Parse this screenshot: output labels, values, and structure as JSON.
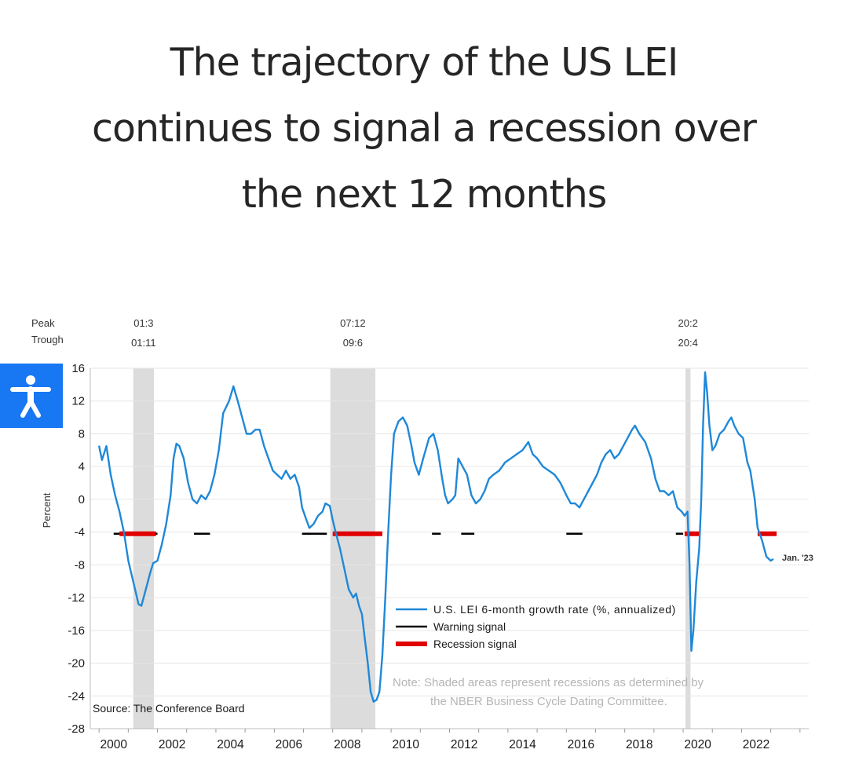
{
  "headline": [
    "The trajectory of the US LEI",
    "continues to signal a recession over",
    "the next 12 months"
  ],
  "colors": {
    "series": "#1f88d8",
    "warning": "#000000",
    "recession": "#e00000",
    "shade": "#dcdcdc",
    "accessibility": "#1877f2"
  },
  "accessibility_button": {
    "icon": "accessibility-person-icon"
  },
  "chart_data": {
    "type": "line",
    "ylabel": "Percent",
    "ylim": [
      -28,
      16
    ],
    "yticks": [
      "16",
      "12",
      "8",
      "4",
      "0",
      "-4",
      "-8",
      "-12",
      "-16",
      "-20",
      "-24",
      "-28"
    ],
    "xlim": [
      1999.7,
      2024.3
    ],
    "xticks": [
      "2000",
      "2002",
      "2004",
      "2006",
      "2008",
      "2010",
      "2012",
      "2014",
      "2016",
      "2018",
      "2020",
      "2022"
    ],
    "peak_trough_labels": {
      "peak": "Peak",
      "trough": "Trough"
    },
    "recessions": [
      {
        "peak": "01:3",
        "trough": "01:11",
        "start": 2001.17,
        "end": 2001.88
      },
      {
        "peak": "07:12",
        "trough": "09:6",
        "start": 2007.92,
        "end": 2009.46
      },
      {
        "peak": "20:2",
        "trough": "20:4",
        "start": 2020.08,
        "end": 2020.25
      }
    ],
    "series": [
      {
        "name": "U.S. LEI 6-month growth rate (%, annualized)",
        "points": [
          [
            2000.0,
            6.5
          ],
          [
            2000.1,
            4.8
          ],
          [
            2000.25,
            6.5
          ],
          [
            2000.4,
            3.0
          ],
          [
            2000.55,
            0.5
          ],
          [
            2000.7,
            -1.5
          ],
          [
            2000.85,
            -4.0
          ],
          [
            2001.0,
            -7.5
          ],
          [
            2001.2,
            -10.5
          ],
          [
            2001.35,
            -12.8
          ],
          [
            2001.45,
            -13.0
          ],
          [
            2001.6,
            -11.0
          ],
          [
            2001.75,
            -9.0
          ],
          [
            2001.85,
            -7.8
          ],
          [
            2002.0,
            -7.5
          ],
          [
            2002.15,
            -5.5
          ],
          [
            2002.3,
            -3.0
          ],
          [
            2002.45,
            0.5
          ],
          [
            2002.55,
            5.0
          ],
          [
            2002.65,
            6.8
          ],
          [
            2002.75,
            6.5
          ],
          [
            2002.9,
            5.0
          ],
          [
            2003.05,
            2.0
          ],
          [
            2003.2,
            0.0
          ],
          [
            2003.35,
            -0.5
          ],
          [
            2003.5,
            0.5
          ],
          [
            2003.65,
            0.0
          ],
          [
            2003.8,
            1.0
          ],
          [
            2003.95,
            3.0
          ],
          [
            2004.1,
            6.0
          ],
          [
            2004.25,
            10.5
          ],
          [
            2004.45,
            12.0
          ],
          [
            2004.6,
            13.8
          ],
          [
            2004.75,
            12.0
          ],
          [
            2004.9,
            10.0
          ],
          [
            2005.05,
            8.0
          ],
          [
            2005.2,
            8.0
          ],
          [
            2005.35,
            8.5
          ],
          [
            2005.5,
            8.5
          ],
          [
            2005.65,
            6.5
          ],
          [
            2005.8,
            5.0
          ],
          [
            2005.95,
            3.5
          ],
          [
            2006.1,
            3.0
          ],
          [
            2006.25,
            2.5
          ],
          [
            2006.4,
            3.5
          ],
          [
            2006.55,
            2.5
          ],
          [
            2006.7,
            3.0
          ],
          [
            2006.85,
            1.5
          ],
          [
            2006.95,
            -1.0
          ],
          [
            2007.1,
            -2.5
          ],
          [
            2007.2,
            -3.5
          ],
          [
            2007.35,
            -3.0
          ],
          [
            2007.5,
            -2.0
          ],
          [
            2007.65,
            -1.5
          ],
          [
            2007.75,
            -0.5
          ],
          [
            2007.9,
            -0.8
          ],
          [
            2008.0,
            -2.5
          ],
          [
            2008.1,
            -4.0
          ],
          [
            2008.25,
            -6.0
          ],
          [
            2008.4,
            -8.5
          ],
          [
            2008.55,
            -11.0
          ],
          [
            2008.7,
            -12.0
          ],
          [
            2008.8,
            -11.5
          ],
          [
            2008.9,
            -13.0
          ],
          [
            2009.0,
            -14.0
          ],
          [
            2009.1,
            -17.0
          ],
          [
            2009.2,
            -20.0
          ],
          [
            2009.3,
            -23.5
          ],
          [
            2009.4,
            -24.7
          ],
          [
            2009.5,
            -24.5
          ],
          [
            2009.6,
            -23.5
          ],
          [
            2009.7,
            -19.0
          ],
          [
            2009.8,
            -12.0
          ],
          [
            2009.9,
            -4.0
          ],
          [
            2010.0,
            3.0
          ],
          [
            2010.1,
            8.0
          ],
          [
            2010.25,
            9.5
          ],
          [
            2010.4,
            10.0
          ],
          [
            2010.55,
            9.0
          ],
          [
            2010.7,
            6.5
          ],
          [
            2010.8,
            4.5
          ],
          [
            2010.95,
            3.0
          ],
          [
            2011.1,
            5.0
          ],
          [
            2011.3,
            7.5
          ],
          [
            2011.45,
            8.0
          ],
          [
            2011.6,
            6.0
          ],
          [
            2011.75,
            2.5
          ],
          [
            2011.85,
            0.5
          ],
          [
            2011.95,
            -0.5
          ],
          [
            2012.1,
            0.0
          ],
          [
            2012.2,
            0.5
          ],
          [
            2012.3,
            5.0
          ],
          [
            2012.45,
            4.0
          ],
          [
            2012.6,
            3.0
          ],
          [
            2012.75,
            0.5
          ],
          [
            2012.9,
            -0.5
          ],
          [
            2013.05,
            0.0
          ],
          [
            2013.2,
            1.0
          ],
          [
            2013.35,
            2.5
          ],
          [
            2013.5,
            3.0
          ],
          [
            2013.7,
            3.5
          ],
          [
            2013.9,
            4.5
          ],
          [
            2014.1,
            5.0
          ],
          [
            2014.3,
            5.5
          ],
          [
            2014.5,
            6.0
          ],
          [
            2014.7,
            7.0
          ],
          [
            2014.85,
            5.5
          ],
          [
            2015.0,
            5.0
          ],
          [
            2015.2,
            4.0
          ],
          [
            2015.4,
            3.5
          ],
          [
            2015.6,
            3.0
          ],
          [
            2015.8,
            2.0
          ],
          [
            2016.0,
            0.5
          ],
          [
            2016.15,
            -0.5
          ],
          [
            2016.3,
            -0.5
          ],
          [
            2016.45,
            -1.0
          ],
          [
            2016.6,
            0.0
          ],
          [
            2016.75,
            1.0
          ],
          [
            2016.9,
            2.0
          ],
          [
            2017.05,
            3.0
          ],
          [
            2017.2,
            4.5
          ],
          [
            2017.35,
            5.5
          ],
          [
            2017.5,
            6.0
          ],
          [
            2017.65,
            5.0
          ],
          [
            2017.8,
            5.5
          ],
          [
            2017.95,
            6.5
          ],
          [
            2018.1,
            7.5
          ],
          [
            2018.25,
            8.5
          ],
          [
            2018.35,
            9.0
          ],
          [
            2018.5,
            8.0
          ],
          [
            2018.7,
            7.0
          ],
          [
            2018.9,
            5.0
          ],
          [
            2019.05,
            2.5
          ],
          [
            2019.2,
            1.0
          ],
          [
            2019.35,
            1.0
          ],
          [
            2019.5,
            0.5
          ],
          [
            2019.65,
            1.0
          ],
          [
            2019.8,
            -1.0
          ],
          [
            2019.95,
            -1.5
          ],
          [
            2020.05,
            -2.0
          ],
          [
            2020.15,
            -1.5
          ],
          [
            2020.22,
            -8.0
          ],
          [
            2020.28,
            -18.5
          ],
          [
            2020.35,
            -16.0
          ],
          [
            2020.45,
            -10.0
          ],
          [
            2020.55,
            -6.0
          ],
          [
            2020.62,
            0.0
          ],
          [
            2020.68,
            9.0
          ],
          [
            2020.75,
            15.5
          ],
          [
            2020.82,
            13.0
          ],
          [
            2020.9,
            9.0
          ],
          [
            2021.0,
            6.0
          ],
          [
            2021.1,
            6.5
          ],
          [
            2021.25,
            8.0
          ],
          [
            2021.4,
            8.5
          ],
          [
            2021.55,
            9.5
          ],
          [
            2021.65,
            10.0
          ],
          [
            2021.75,
            9.0
          ],
          [
            2021.9,
            8.0
          ],
          [
            2022.05,
            7.5
          ],
          [
            2022.2,
            4.5
          ],
          [
            2022.3,
            3.5
          ],
          [
            2022.45,
            0.0
          ],
          [
            2022.55,
            -3.5
          ],
          [
            2022.7,
            -5.0
          ],
          [
            2022.85,
            -7.0
          ],
          [
            2023.0,
            -7.5
          ],
          [
            2023.08,
            -7.3
          ]
        ]
      },
      {
        "name": "Warning signal",
        "segments": [
          [
            2000.5,
            2002.0
          ],
          [
            2003.25,
            2003.8
          ],
          [
            2006.95,
            2007.8
          ],
          [
            2011.4,
            2011.7
          ],
          [
            2012.4,
            2012.85
          ],
          [
            2016.0,
            2016.55
          ],
          [
            2019.75,
            2020.0
          ]
        ]
      },
      {
        "name": "Recession signal",
        "segments": [
          [
            2000.7,
            2001.95
          ],
          [
            2008.0,
            2009.7
          ],
          [
            2020.05,
            2020.55
          ],
          [
            2022.55,
            2023.2
          ]
        ]
      }
    ],
    "signal_level": -4.2,
    "end_label": "Jan. '23",
    "legend_position": "bottom-right",
    "note": [
      "Note: Shaded areas represent recessions as determined by",
      "the NBER Business Cycle Dating Committee."
    ],
    "source": "Source: The Conference Board",
    "grid": "horizontal"
  }
}
